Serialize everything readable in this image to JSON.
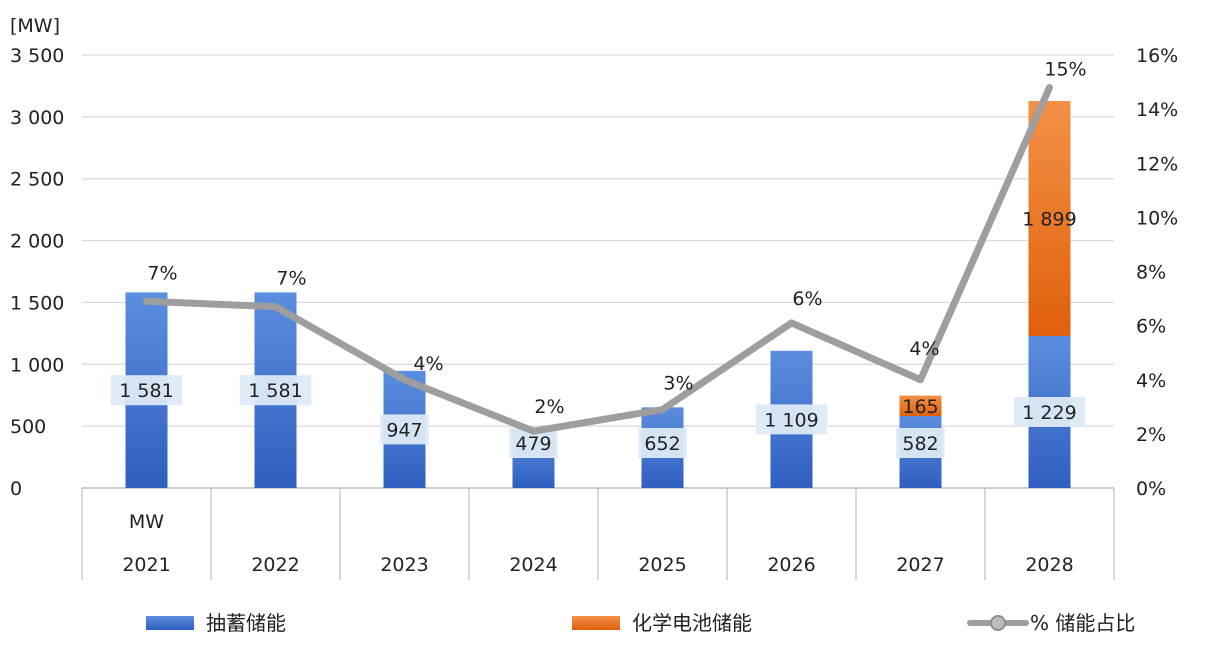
{
  "chart_data": {
    "type": "bar",
    "stacked": true,
    "ylabel_left": "[MW]",
    "y_left_ticks": [
      "0",
      "500",
      "1 000",
      "1 500",
      "2 000",
      "2 500",
      "3 000",
      "3 500"
    ],
    "y_left_lim": [
      0,
      3500
    ],
    "y_right_ticks": [
      "0%",
      "2%",
      "4%",
      "6%",
      "8%",
      "10%",
      "12%",
      "14%",
      "16%"
    ],
    "y_right_lim": [
      0,
      16
    ],
    "table_row_label": "MW",
    "categories": [
      "2021",
      "2022",
      "2023",
      "2024",
      "2025",
      "2026",
      "2027",
      "2028"
    ],
    "series": [
      {
        "name": "抽蓄储能",
        "color": "#3a6cc8",
        "values": [
          1581,
          1581,
          947,
          479,
          652,
          1109,
          582,
          1229
        ],
        "labels": [
          "1 581",
          "1 581",
          "947",
          "479",
          "652",
          "1 109",
          "582",
          "1 229"
        ]
      },
      {
        "name": "化学电池储能",
        "color": "#e86f1a",
        "values": [
          0,
          0,
          0,
          0,
          0,
          0,
          165,
          1899
        ],
        "labels": [
          "",
          "",
          "",
          "",
          "",
          "",
          "165",
          "1 899"
        ]
      }
    ],
    "line": {
      "name": "% 储能占比",
      "color": "#9e9e9e",
      "values": [
        6.9,
        6.7,
        4.0,
        2.1,
        2.9,
        6.1,
        4.0,
        14.8
      ],
      "labels": [
        "7%",
        "7%",
        "4%",
        "2%",
        "3%",
        "6%",
        "4%",
        "15%"
      ]
    },
    "legend": [
      "抽蓄储能",
      "化学电池储能",
      "% 储能占比"
    ],
    "legend_position": "bottom",
    "grid": true
  }
}
